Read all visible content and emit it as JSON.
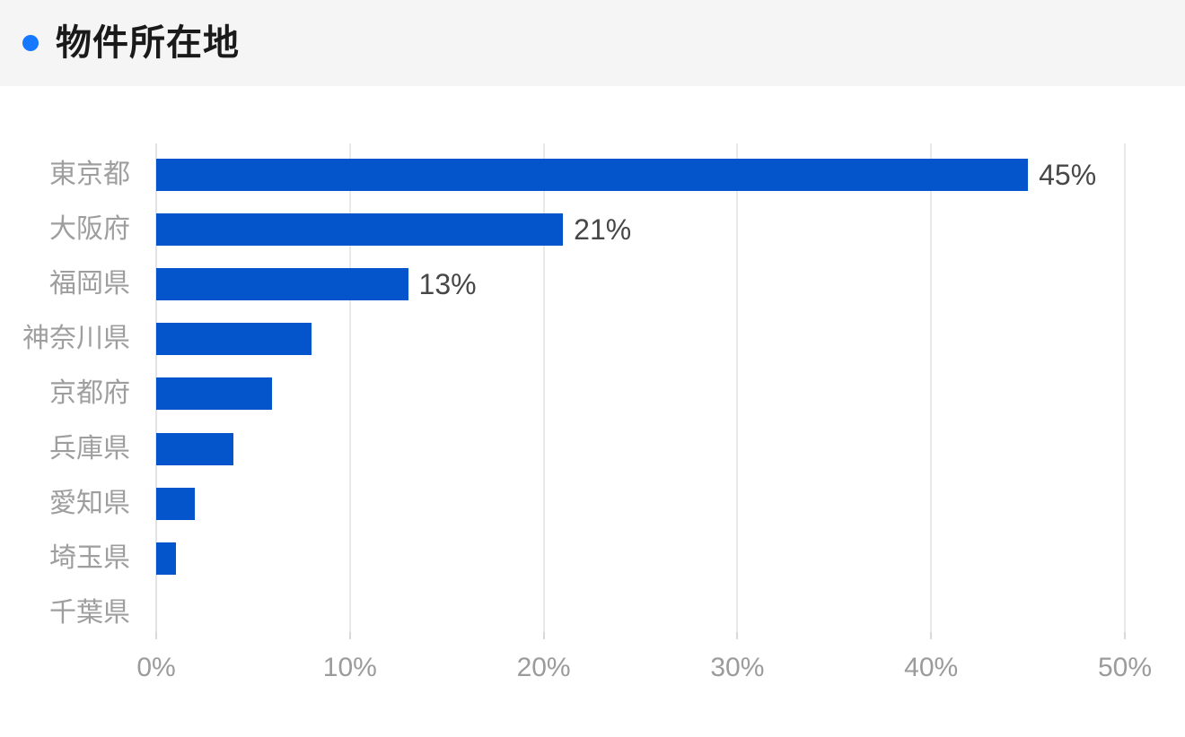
{
  "header": {
    "title": "物件所在地",
    "bullet_color": "#1677ff",
    "background": "#f5f5f6",
    "title_color": "#1a1a1a"
  },
  "chart_data": {
    "type": "bar",
    "orientation": "horizontal",
    "title": "物件所在地",
    "categories": [
      "東京都",
      "大阪府",
      "福岡県",
      "神奈川県",
      "京都府",
      "兵庫県",
      "愛知県",
      "埼玉県",
      "千葉県"
    ],
    "values": [
      45,
      21,
      13,
      8,
      6,
      4,
      2,
      1,
      0
    ],
    "value_labels": [
      "45%",
      "21%",
      "13%",
      "",
      "",
      "",
      "",
      "",
      ""
    ],
    "x_tick_values": [
      0,
      10,
      20,
      30,
      40,
      50
    ],
    "x_tick_labels": [
      "0%",
      "10%",
      "20%",
      "30%",
      "40%",
      "50%"
    ],
    "xlim": [
      0,
      50
    ],
    "grid": true,
    "legend": "none",
    "colors": {
      "bar": "#0454cc",
      "gridline": "#e9e9e9",
      "axis_line": "#e3e3e3",
      "tick": "#d9d9d9",
      "category_label": "#9e9e9e",
      "tick_label": "#9b9b9b",
      "value_label": "#474747"
    }
  }
}
